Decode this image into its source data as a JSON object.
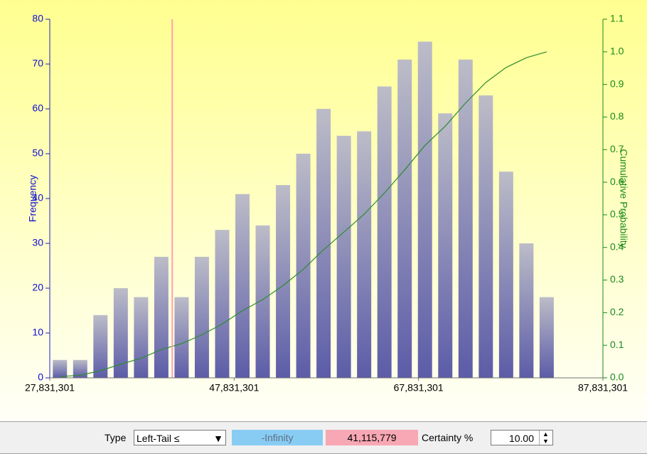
{
  "chart_data": {
    "type": "histogram",
    "bins": [
      27831301,
      30031301,
      32231301,
      34431301,
      36631301,
      38831301,
      41031301,
      43231301,
      45431301,
      47631301,
      49831301,
      52031301,
      54231301,
      56431301,
      58631301,
      60831301,
      63031301,
      65231301,
      67431301,
      69631301,
      71831301,
      74031301,
      76231301,
      78431301,
      80631301,
      82831301
    ],
    "values": [
      4,
      4,
      14,
      20,
      18,
      27,
      18,
      27,
      33,
      41,
      34,
      43,
      50,
      60,
      54,
      55,
      65,
      71,
      75,
      59,
      71,
      63,
      46,
      30,
      18
    ],
    "color": "#6a6aae",
    "cumulative": {
      "color": "#2e8b2e",
      "axis": "y2",
      "values": [
        0.004,
        0.008,
        0.022,
        0.042,
        0.06,
        0.087,
        0.105,
        0.132,
        0.165,
        0.206,
        0.24,
        0.283,
        0.333,
        0.393,
        0.447,
        0.502,
        0.567,
        0.638,
        0.713,
        0.772,
        0.843,
        0.906,
        0.952,
        0.982,
        1.0
      ]
    },
    "marker_x": 41115779,
    "marker_color": "#ffa0b0",
    "ylabel": "Frequency",
    "y2label": "Cumulative Probability",
    "xlim": [
      27831301,
      87831301
    ],
    "xticks": [
      {
        "value": 27831301,
        "label": "27,831,301"
      },
      {
        "value": 47831301,
        "label": "47,831,301"
      },
      {
        "value": 67831301,
        "label": "67,831,301"
      },
      {
        "value": 87831301,
        "label": "87,831,301"
      }
    ],
    "ylim": [
      0,
      80
    ],
    "yticks": [
      0,
      10,
      20,
      30,
      40,
      50,
      60,
      70,
      80
    ],
    "y2lim": [
      0,
      1.1
    ],
    "y2ticks": [
      {
        "value": 0,
        "label": "0.0"
      },
      0.1,
      0.2,
      0.3,
      0.4,
      0.5,
      0.6,
      0.7,
      0.8,
      0.9,
      {
        "value": 1.0,
        "label": "1.0"
      },
      1.1
    ]
  },
  "controls": {
    "type_label": "Type",
    "type_value": "Left-Tail ≤",
    "lower": "-Infinity",
    "upper": "41,115,779",
    "certainty_label": "Certainty %",
    "certainty": "10.00"
  }
}
